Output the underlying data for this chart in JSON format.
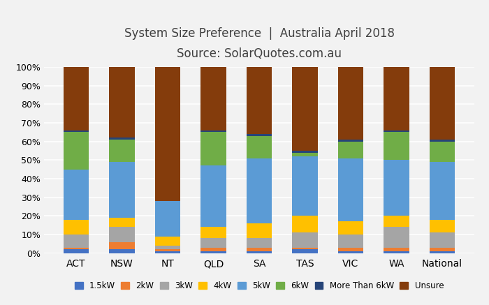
{
  "title_line1": "System Size Preference  |  Australia April 2018",
  "title_line2": "Source: SolarQuotes.com.au",
  "categories": [
    "ACT",
    "NSW",
    "NT",
    "QLD",
    "SA",
    "TAS",
    "VIC",
    "WA",
    "National"
  ],
  "series": {
    "1.5kW": [
      2,
      2,
      1,
      1,
      1,
      2,
      1,
      1,
      1
    ],
    "2kW": [
      1,
      4,
      1,
      2,
      2,
      1,
      2,
      2,
      2
    ],
    "3kW": [
      7,
      8,
      2,
      5,
      5,
      8,
      7,
      11,
      8
    ],
    "4kW": [
      8,
      5,
      5,
      6,
      8,
      9,
      7,
      6,
      7
    ],
    "5kW": [
      27,
      30,
      19,
      33,
      35,
      32,
      34,
      30,
      31
    ],
    "6kW": [
      20,
      12,
      0,
      18,
      12,
      2,
      9,
      15,
      11
    ],
    "More Than 6kW": [
      1,
      1,
      0,
      1,
      1,
      1,
      1,
      1,
      1
    ],
    "Unsure": [
      34,
      38,
      72,
      34,
      36,
      45,
      39,
      34,
      39
    ]
  },
  "colors": {
    "1.5kW": "#4472C4",
    "2kW": "#ED7D31",
    "3kW": "#A5A5A5",
    "4kW": "#FFC000",
    "5kW": "#5B9BD5",
    "6kW": "#70AD47",
    "More Than 6kW": "#264478",
    "Unsure": "#843C0C"
  },
  "series_order": [
    "1.5kW",
    "2kW",
    "3kW",
    "4kW",
    "5kW",
    "6kW",
    "More Than 6kW",
    "Unsure"
  ],
  "ylim": [
    0,
    100
  ],
  "yticks": [
    0,
    10,
    20,
    30,
    40,
    50,
    60,
    70,
    80,
    90,
    100
  ],
  "ytick_labels": [
    "0%",
    "10%",
    "20%",
    "30%",
    "40%",
    "50%",
    "60%",
    "70%",
    "80%",
    "90%",
    "100%"
  ],
  "background_color": "#F2F2F2",
  "grid_color": "#FFFFFF",
  "title_fontsize": 12,
  "subtitle_fontsize": 12
}
